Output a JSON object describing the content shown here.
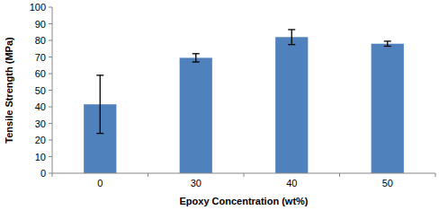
{
  "chart_data": {
    "type": "bar",
    "x_label": "Epoxy Concentration (wt%)",
    "y_label": "Tensile Strength (MPa)",
    "categories": [
      "0",
      "30",
      "40",
      "50"
    ],
    "values": [
      41.5,
      69.5,
      82,
      78
    ],
    "errors": [
      17.5,
      2.5,
      4.5,
      1.5
    ],
    "color": "#4f81bd",
    "ylim": [
      0,
      100
    ],
    "yticks": [
      0,
      10,
      20,
      30,
      40,
      50,
      60,
      70,
      80,
      90,
      100
    ],
    "grid": false
  }
}
